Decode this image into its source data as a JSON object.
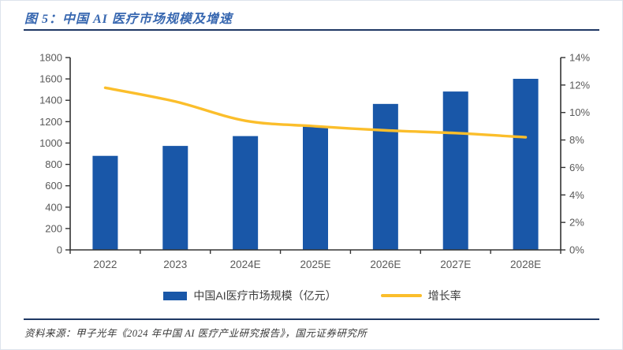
{
  "page": {
    "title": "图 5：中国 AI 医疗市场规模及增速",
    "source": "资料来源：甲子光年《2024 年中国 AI 医疗产业研究报告》，国元证券研究所"
  },
  "colors": {
    "bar": "#1957a8",
    "line": "#fbbe2b",
    "title": "#3767b0",
    "rule": "#1f3864",
    "axis_text": "#595959",
    "axis_line": "#333333"
  },
  "chart_data": {
    "type": "bar",
    "subtype": "combo-bar-line-dual-axis",
    "title": "中国 AI 医疗市场规模及增速",
    "categories": [
      "2022",
      "2023",
      "2024E",
      "2025E",
      "2026E",
      "2027E",
      "2028E"
    ],
    "series": [
      {
        "name": "中国AI医疗市场规模（亿元）",
        "type": "bar",
        "axis": "left",
        "values": [
          880,
          973,
          1065,
          1157,
          1366,
          1482,
          1601
        ]
      },
      {
        "name": "增长率",
        "type": "line",
        "axis": "right",
        "values": [
          11.8,
          10.8,
          9.4,
          9.0,
          8.7,
          8.5,
          8.2
        ],
        "unit": "%"
      }
    ],
    "left_axis": {
      "min": 0,
      "max": 1800,
      "step": 200
    },
    "right_axis": {
      "min": 0,
      "max": 14,
      "step": 2,
      "suffix": "%"
    },
    "grid": false,
    "legend_position": "bottom"
  }
}
